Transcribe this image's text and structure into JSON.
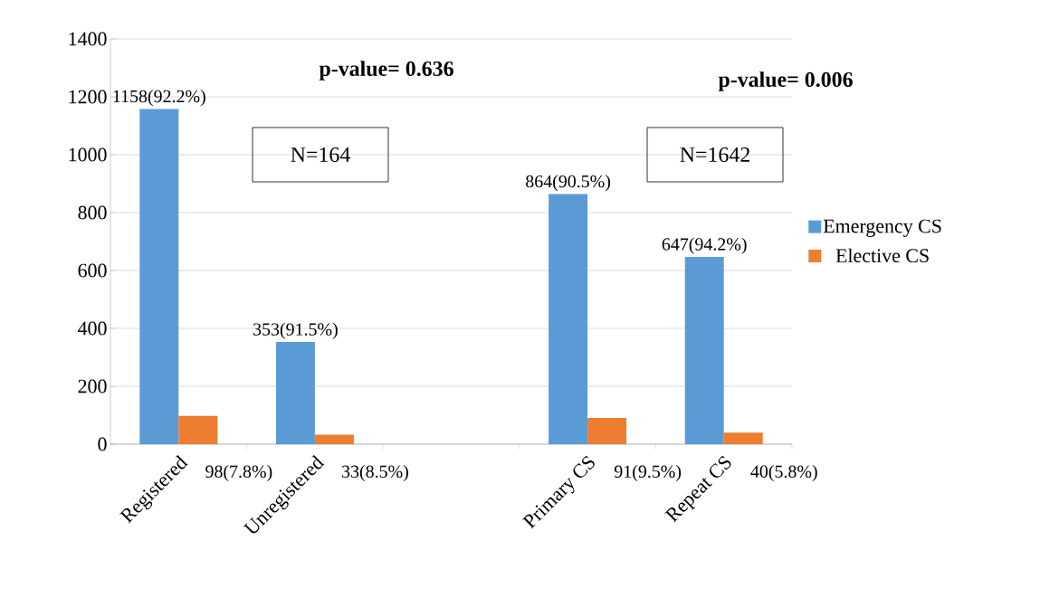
{
  "chart_data": {
    "type": "bar",
    "categories": [
      "Registered",
      "Unregistered",
      null,
      "Primary CS",
      "Repeat CS"
    ],
    "series": [
      {
        "name": "Emergency CS",
        "color": "#5b9bd5",
        "values": [
          1158,
          353,
          null,
          864,
          647
        ],
        "value_labels": [
          "1158(92.2%)",
          "353(91.5%)",
          null,
          "864(90.5%)",
          "647(94.2%)"
        ]
      },
      {
        "name": "Elective CS",
        "color": "#ed7d31",
        "values": [
          98,
          33,
          null,
          91,
          40
        ],
        "value_labels": [
          "98(7.8%)",
          "33(8.5%)",
          null,
          "91(9.5%)",
          "40(5.8%)"
        ]
      }
    ],
    "ylim": [
      0,
      1400
    ],
    "yticks": [
      0,
      200,
      400,
      600,
      800,
      1000,
      1200,
      1400
    ],
    "grid": "y",
    "legend": "right",
    "annotations": [
      "p-value= 0.636",
      "N=164",
      "p-value= 0.006",
      "N=1642"
    ]
  }
}
